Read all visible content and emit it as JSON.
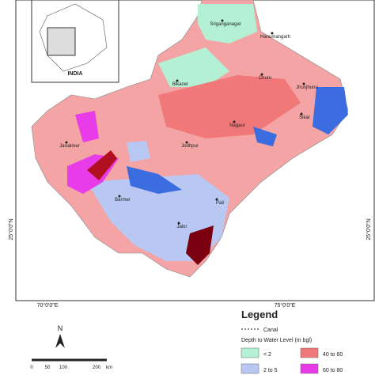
{
  "inset": {
    "country": "INDIA"
  },
  "places": [
    "Sriganganagar",
    "Hanumangarh",
    "Bikaner",
    "Churu",
    "Jhunjhunu",
    "Sikar",
    "Nagaur",
    "Jaisalmer",
    "Jodhpur",
    "Barmer",
    "Pali",
    "Jalor"
  ],
  "axes": {
    "x_labels": [
      "70°0'0\"E",
      "75°0'0\"E"
    ],
    "y_labels": [
      "25°0'0\"N",
      "25°0'0\"N"
    ]
  },
  "legend": {
    "title": "Legend",
    "canal": "Canal",
    "subtitle": "Depth to Water Level (m bgl)",
    "classes": [
      {
        "label": "< 2",
        "color": "#b4f0d4"
      },
      {
        "label": "2 to 5",
        "color": "#b8c8f2"
      },
      {
        "label": "40 to 60",
        "color": "#f07878"
      },
      {
        "label": "60 to 80",
        "color": "#e83ce8"
      }
    ]
  },
  "north": "N",
  "scale": {
    "ticks": [
      "0",
      "50",
      "100",
      "200"
    ],
    "unit": "km"
  }
}
